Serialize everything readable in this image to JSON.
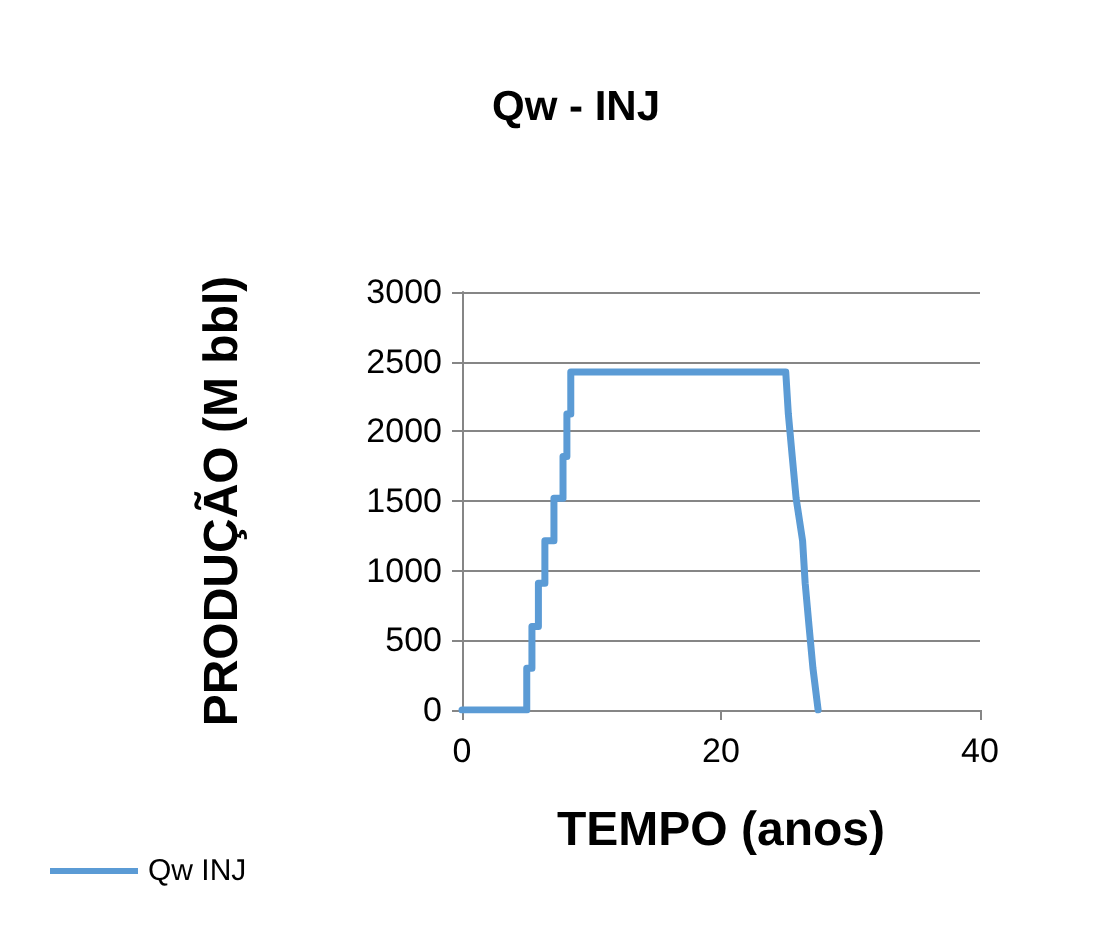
{
  "chart_data": {
    "type": "line",
    "title": "Qw - INJ",
    "xlabel": "TEMPO (anos)",
    "ylabel": "PRODUÇÃO (M bbl)",
    "series": [
      {
        "name": "Qw INJ",
        "color": "#5b9bd5",
        "x": [
          0,
          5,
          5,
          5.4,
          5.4,
          5.9,
          5.9,
          6.4,
          6.4,
          7.1,
          7.1,
          7.8,
          7.8,
          8.1,
          8.1,
          8.4,
          8.4,
          25,
          25.2,
          25.5,
          25.8,
          26.3,
          26.5,
          26.8,
          27.1,
          27.5
        ],
        "values": [
          0,
          0,
          300,
          300,
          600,
          600,
          910,
          910,
          1215,
          1215,
          1520,
          1520,
          1820,
          1820,
          2125,
          2125,
          2425,
          2425,
          2125,
          1820,
          1520,
          1215,
          910,
          600,
          300,
          0
        ]
      }
    ],
    "xlim": [
      0,
      40
    ],
    "xticks": [
      0,
      20,
      40
    ],
    "ylim": [
      0,
      3000
    ],
    "yticks": [
      0,
      500,
      1000,
      1500,
      2000,
      2500,
      3000
    ],
    "grid": "y",
    "legend": "bottom left",
    "marker": "none",
    "line_style": "solid"
  }
}
